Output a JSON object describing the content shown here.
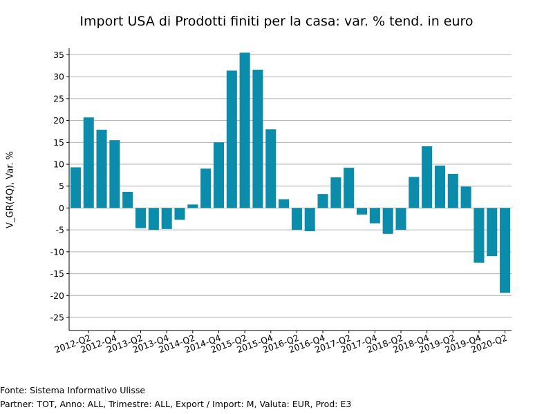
{
  "chart_data": {
    "type": "bar",
    "title": "Import USA di Prodotti finiti per la casa: var. % tend. in euro",
    "xlabel": "",
    "ylabel": "V_GR(4Q), Var. %",
    "ylim": [
      -28,
      36.5
    ],
    "yticks": [
      35,
      30,
      25,
      20,
      15,
      10,
      5,
      0,
      -5,
      -10,
      -15,
      -20,
      -25
    ],
    "grid": true,
    "bar_color": "#0a8caa",
    "x_tick_labels": [
      "2012-Q2",
      "2012-Q4",
      "2013-Q2",
      "2013-Q4",
      "2014-Q2",
      "2014-Q4",
      "2015-Q2",
      "2015-Q4",
      "2016-Q2",
      "2016-Q4",
      "2017-Q2",
      "2017-Q4",
      "2018-Q2",
      "2018-Q4",
      "2019-Q2",
      "2019-Q4",
      "2020-Q2"
    ],
    "categories": [
      "2012-Q1",
      "2012-Q2",
      "2012-Q3",
      "2012-Q4",
      "2013-Q1",
      "2013-Q2",
      "2013-Q3",
      "2013-Q4",
      "2014-Q1",
      "2014-Q2",
      "2014-Q3",
      "2014-Q4",
      "2015-Q1",
      "2015-Q2",
      "2015-Q3",
      "2015-Q4",
      "2016-Q1",
      "2016-Q2",
      "2016-Q3",
      "2016-Q4",
      "2017-Q1",
      "2017-Q2",
      "2017-Q3",
      "2017-Q4",
      "2018-Q1",
      "2018-Q2",
      "2018-Q3",
      "2018-Q4",
      "2019-Q1",
      "2019-Q2",
      "2019-Q3",
      "2019-Q4",
      "2020-Q1",
      "2020-Q2"
    ],
    "values": [
      9.3,
      20.7,
      17.9,
      15.5,
      3.7,
      -4.6,
      -5.0,
      -4.8,
      -2.7,
      0.8,
      9.0,
      15.0,
      31.4,
      35.5,
      31.6,
      18.0,
      2.0,
      -5.0,
      -5.3,
      3.2,
      7.0,
      9.2,
      -1.5,
      -3.5,
      -5.9,
      -5.0,
      7.1,
      14.1,
      9.7,
      7.8,
      4.9,
      -12.5,
      -11.0,
      -19.4
    ]
  },
  "footer": {
    "source": "Fonte: Sistema Informativo Ulisse",
    "params": "Partner: TOT, Anno: ALL, Trimestre: ALL, Export / Import: M, Valuta: EUR, Prod: E3"
  }
}
